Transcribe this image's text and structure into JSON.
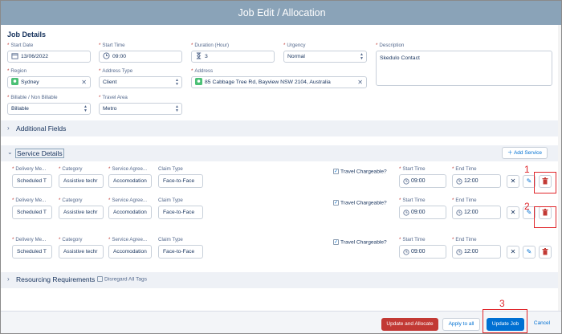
{
  "window": {
    "title": "Job Edit / Allocation"
  },
  "job_details": {
    "heading": "Job Details",
    "start_date": {
      "label": "Start Date",
      "value": "13/06/2022"
    },
    "start_time": {
      "label": "Start Time",
      "value": "09:00"
    },
    "duration": {
      "label": "Duration (Hour)",
      "value": "3"
    },
    "urgency": {
      "label": "Urgency",
      "value": "Normal"
    },
    "description": {
      "label": "Description",
      "value": "Skedulo Contact"
    },
    "region": {
      "label": "Region",
      "value": "Sydney"
    },
    "address_type": {
      "label": "Address Type",
      "value": "Client"
    },
    "address": {
      "label": "Address",
      "value": "85 Cabbage Tree Rd, Bayview NSW 2104, Australia"
    },
    "billable": {
      "label": "Billable / Non Billable",
      "value": "Billable"
    },
    "travel_area": {
      "label": "Travel Area",
      "value": "Metro"
    }
  },
  "additional_fields": {
    "label": "Additional Fields"
  },
  "service_details": {
    "label": "Service Details",
    "add_service": "Add Service",
    "columns": {
      "delivery": "Delivery Me...",
      "category": "Category",
      "agreement": "Service Agree...",
      "claim": "Claim Type",
      "start_time": "Start Time",
      "end_time": "End Time"
    },
    "travel_label": "Travel Chargeable?",
    "rows": [
      {
        "delivery": "Scheduled T",
        "category": "Assistive techr",
        "agreement": "Accomodation",
        "claim": "Face-to-Face",
        "start": "09:00",
        "end": "12:00"
      },
      {
        "delivery": "Scheduled T",
        "category": "Assistive techr",
        "agreement": "Accomodation",
        "claim": "Face-to-Face",
        "start": "09:00",
        "end": "12:00"
      },
      {
        "delivery": "Scheduled T",
        "category": "Assistive techr",
        "agreement": "Accomodation",
        "claim": "Face-to-Face",
        "start": "09:00",
        "end": "12:00"
      }
    ]
  },
  "resourcing": {
    "label": "Resourcing Requirements",
    "disregard": "Disregard All Tags"
  },
  "annotations": {
    "one": "1",
    "two": "2",
    "three": "3"
  },
  "footer": {
    "update_allocate": "Update and Allocate",
    "apply_all": "Apply to all",
    "update_job": "Update Job",
    "cancel": "Cancel"
  },
  "icons": {
    "calendar": "calendar-icon",
    "clock": "clock-icon",
    "hourglass": "hourglass-icon",
    "location": "location-pin-icon",
    "delete": "trash-icon",
    "edit": "pencil-icon",
    "close": "close-icon"
  },
  "colors": {
    "titlebar": "#8aa3b8",
    "accent": "#0070d2",
    "danger": "#c23934",
    "annotation": "#e0262b"
  }
}
